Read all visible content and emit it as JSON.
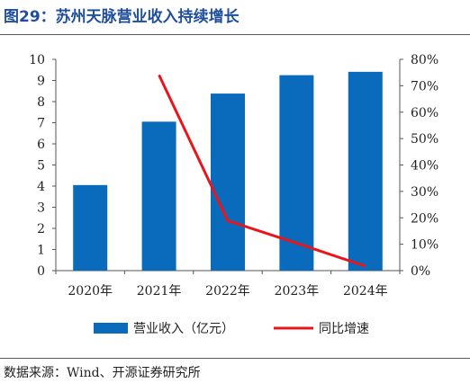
{
  "figure": {
    "title": "图29：苏州天脉营业收入持续增长",
    "source": "数据来源：Wind、开源证券研究所"
  },
  "chart_data": {
    "type": "bar",
    "categories": [
      "2020年",
      "2021年",
      "2022年",
      "2023年",
      "2024年"
    ],
    "series": [
      {
        "name": "营业收入（亿元）",
        "type": "bar",
        "axis": "left",
        "values": [
          4.05,
          7.05,
          8.38,
          9.25,
          9.41
        ],
        "color": "#0a6bbd"
      },
      {
        "name": "同比增速",
        "type": "line",
        "axis": "right",
        "values": [
          null,
          74.1,
          18.9,
          10.4,
          1.7
        ],
        "color": "#e8161b"
      }
    ],
    "y_left": {
      "lim": [
        0,
        10
      ],
      "ticks": [
        0,
        1,
        2,
        3,
        4,
        5,
        6,
        7,
        8,
        9,
        10
      ]
    },
    "y_right": {
      "lim": [
        0,
        80
      ],
      "ticks": [
        "0%",
        "10%",
        "20%",
        "30%",
        "40%",
        "50%",
        "60%",
        "70%",
        "80%"
      ]
    },
    "grid": false,
    "legend": "bottom"
  }
}
